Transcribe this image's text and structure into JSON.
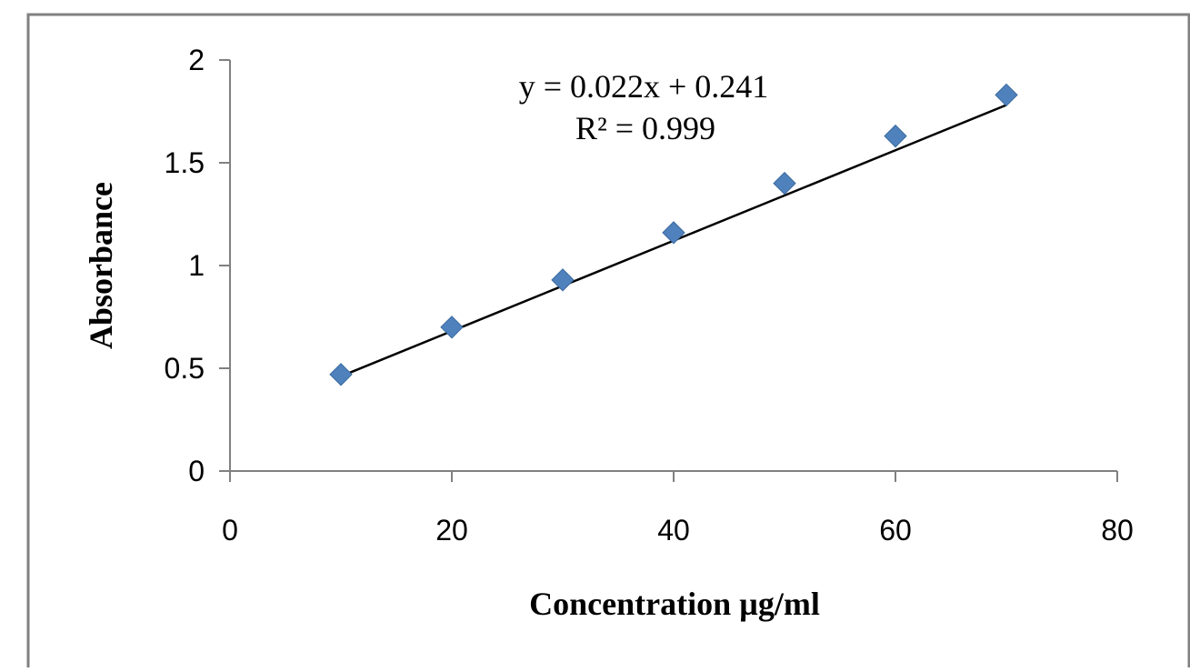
{
  "chart_data": {
    "type": "scatter",
    "title": "",
    "xlabel": "Concentration µg/ml",
    "ylabel": "Absorbance",
    "xlim": [
      0,
      80
    ],
    "ylim": [
      0,
      2
    ],
    "x_ticks": [
      "0",
      "20",
      "40",
      "60",
      "80"
    ],
    "y_ticks": [
      "0",
      "0.5",
      "1",
      "1.5",
      "2"
    ],
    "grid": false,
    "legend": "none",
    "series": [
      {
        "marker": "diamond",
        "color": "#4F81BD",
        "x": [
          10,
          20,
          30,
          40,
          50,
          60,
          70
        ],
        "y": [
          0.47,
          0.7,
          0.93,
          1.16,
          1.4,
          1.63,
          1.83
        ]
      }
    ],
    "trendline": {
      "type": "linear",
      "slope": 0.022,
      "intercept": 0.241,
      "x_range": [
        10,
        70
      ],
      "color": "#000000"
    },
    "annotations": {
      "equation": "y = 0.022x + 0.241",
      "r_squared": "R² = 0.999"
    },
    "frame_color": "#808080",
    "axis_color": "#808080"
  }
}
